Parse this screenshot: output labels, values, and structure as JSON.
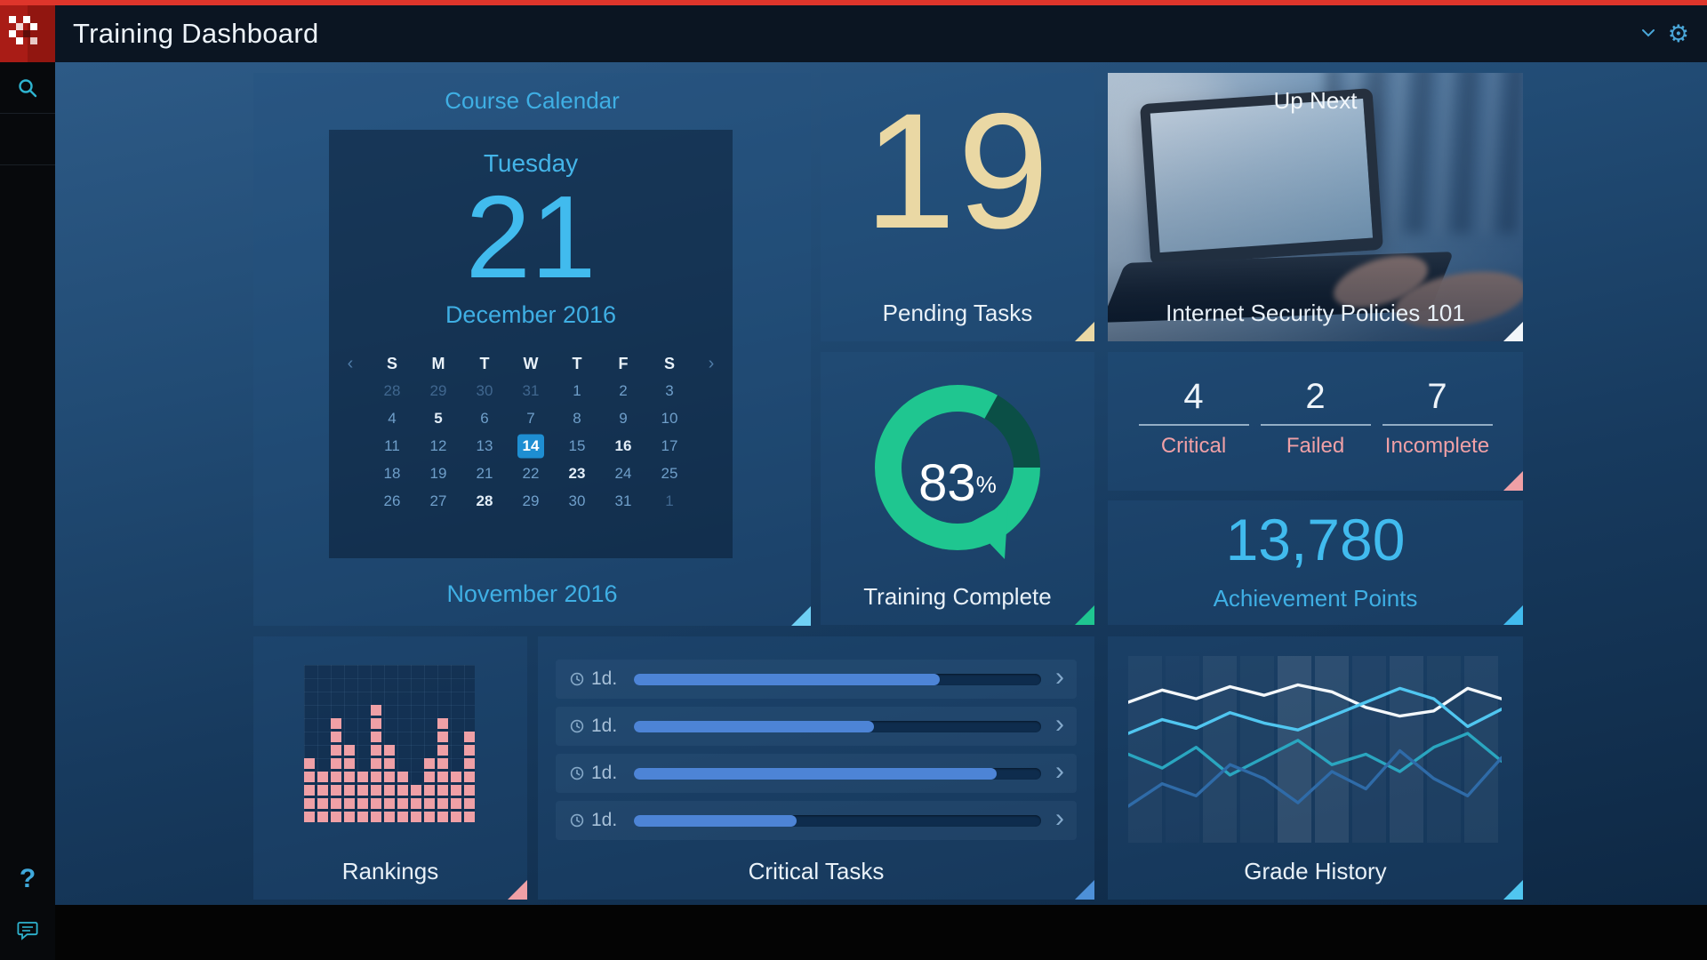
{
  "header": {
    "title": "Training Dashboard"
  },
  "icons": {
    "gear": "⚙",
    "help": "?",
    "chevron_right": "›",
    "calendar_prev": "‹",
    "calendar_next": "›"
  },
  "cards": {
    "course_calendar": {
      "title": "Course Calendar",
      "weekday": "Tuesday",
      "day": "21",
      "month": "December 2016",
      "footer": "November 2016",
      "day_headers": [
        "S",
        "M",
        "T",
        "W",
        "T",
        "F",
        "S"
      ],
      "weeks": [
        [
          {
            "d": "28",
            "muted": true
          },
          {
            "d": "29",
            "muted": true
          },
          {
            "d": "30",
            "muted": true
          },
          {
            "d": "31",
            "muted": true
          },
          {
            "d": "1"
          },
          {
            "d": "2"
          },
          {
            "d": "3"
          }
        ],
        [
          {
            "d": "4"
          },
          {
            "d": "5",
            "bold": true
          },
          {
            "d": "6"
          },
          {
            "d": "7"
          },
          {
            "d": "8"
          },
          {
            "d": "9"
          },
          {
            "d": "10"
          }
        ],
        [
          {
            "d": "11"
          },
          {
            "d": "12"
          },
          {
            "d": "13"
          },
          {
            "d": "14",
            "selected": true
          },
          {
            "d": "15"
          },
          {
            "d": "16",
            "bold": true
          },
          {
            "d": "17"
          }
        ],
        [
          {
            "d": "18"
          },
          {
            "d": "19"
          },
          {
            "d": "21"
          },
          {
            "d": "22"
          },
          {
            "d": "23",
            "bold": true
          },
          {
            "d": "24"
          },
          {
            "d": "25"
          }
        ],
        [
          {
            "d": "26"
          },
          {
            "d": "27"
          },
          {
            "d": "28",
            "bold": true
          },
          {
            "d": "29"
          },
          {
            "d": "30"
          },
          {
            "d": "31"
          },
          {
            "d": "1",
            "muted": true
          }
        ]
      ]
    },
    "pending_tasks": {
      "value": "19",
      "label": "Pending Tasks"
    },
    "up_next": {
      "title": "Up Next",
      "caption": "Internet Security Policies 101"
    },
    "training_complete": {
      "percent": 83,
      "percent_text": "83",
      "percent_suffix": "%",
      "label": "Training Complete"
    },
    "status_summary": {
      "items": [
        {
          "value": "4",
          "label": "Critical"
        },
        {
          "value": "2",
          "label": "Failed"
        },
        {
          "value": "7",
          "label": "Incomplete"
        }
      ]
    },
    "achievement": {
      "value": "13,780",
      "label": "Achievement Points"
    },
    "rankings": {
      "label": "Rankings"
    },
    "critical_tasks": {
      "label": "Critical Tasks",
      "rows": [
        {
          "duration": "1d.",
          "progress": 75
        },
        {
          "duration": "1d.",
          "progress": 59
        },
        {
          "duration": "1d.",
          "progress": 89
        },
        {
          "duration": "1d.",
          "progress": 40
        }
      ]
    },
    "grade_history": {
      "label": "Grade History"
    }
  },
  "chart_data": [
    {
      "type": "bar",
      "name": "rankings-blocks",
      "max_rows": 12,
      "columns": [
        5,
        4,
        8,
        6,
        4,
        9,
        6,
        4,
        3,
        5,
        8,
        4,
        7
      ],
      "color": "#efa0a6"
    },
    {
      "type": "bar",
      "name": "critical-tasks-progress",
      "unit": "%",
      "values": [
        75,
        59,
        89,
        40
      ]
    },
    {
      "type": "line",
      "name": "grade-history",
      "y_range": [
        0,
        100
      ],
      "series": [
        {
          "name": "white",
          "color": "#f4f8fb",
          "values": [
            80,
            87,
            82,
            89,
            84,
            90,
            86,
            77,
            72,
            75,
            88,
            82
          ]
        },
        {
          "name": "light-blue",
          "color": "#50c6f0",
          "values": [
            62,
            70,
            65,
            74,
            68,
            64,
            72,
            80,
            88,
            82,
            66,
            76
          ]
        },
        {
          "name": "teal",
          "color": "#2aa6c0",
          "values": [
            50,
            42,
            54,
            38,
            48,
            58,
            44,
            50,
            40,
            54,
            62,
            46
          ]
        },
        {
          "name": "dark-blue",
          "color": "#2f6ba8",
          "values": [
            20,
            33,
            26,
            44,
            36,
            22,
            40,
            30,
            52,
            36,
            26,
            48
          ]
        }
      ],
      "bg_band_opacities": [
        0.04,
        0.02,
        0.06,
        0.03,
        0.11,
        0.09,
        0.04,
        0.07,
        0.03,
        0.05
      ]
    }
  ],
  "colors": {
    "accent_blue": "#3fafe4",
    "bright_blue": "#41bbee",
    "cream": "#ead8a4",
    "pink": "#efa0a6",
    "green": "#1fc690",
    "bar_fill": "#4d84d6",
    "teal_icon": "#2eb3cf",
    "top_line_red": "#de352b",
    "selected_day": "#1e8ed2"
  }
}
